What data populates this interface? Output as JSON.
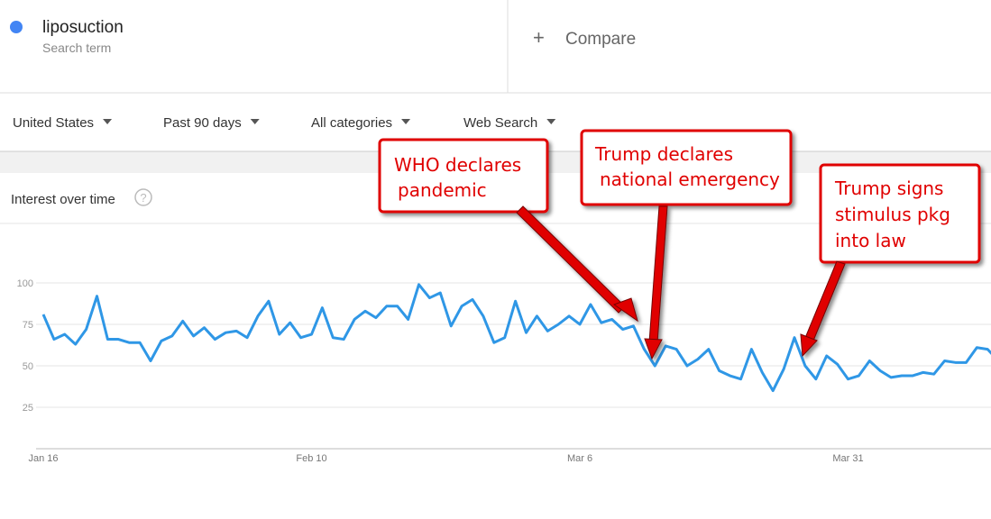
{
  "header": {
    "term": "liposuction",
    "term_type": "Search term",
    "compare": "Compare"
  },
  "filters": [
    "United States",
    "Past 90 days",
    "All categories",
    "Web Search"
  ],
  "card_title": "Interest over time",
  "chart_data": {
    "type": "line",
    "categories": [
      "Jan 16",
      null,
      null,
      null,
      null,
      null,
      null,
      null,
      null,
      null,
      null,
      null,
      null,
      null,
      null,
      null,
      null,
      null,
      null,
      null,
      null,
      null,
      null,
      null,
      null,
      "Feb 10",
      null,
      null,
      null,
      null,
      null,
      null,
      null,
      null,
      null,
      null,
      null,
      null,
      null,
      null,
      null,
      null,
      null,
      null,
      null,
      null,
      null,
      null,
      null,
      null,
      "Mar 6",
      null,
      null,
      null,
      null,
      null,
      null,
      null,
      null,
      null,
      null,
      null,
      null,
      null,
      null,
      null,
      null,
      null,
      null,
      null,
      null,
      null,
      null,
      null,
      null,
      "Mar 31",
      null,
      null,
      null,
      null,
      null,
      null,
      null,
      null,
      null,
      null,
      null,
      null,
      null,
      null
    ],
    "series": [
      {
        "name": "liposuction",
        "color": "#2f97e6",
        "values": [
          81,
          66,
          69,
          63,
          72,
          92,
          66,
          66,
          64,
          64,
          53,
          65,
          68,
          77,
          68,
          73,
          66,
          70,
          71,
          67,
          80,
          89,
          69,
          76,
          67,
          69,
          85,
          67,
          66,
          78,
          83,
          79,
          86,
          86,
          78,
          99,
          91,
          94,
          74,
          86,
          90,
          80,
          64,
          67,
          89,
          70,
          80,
          71,
          75,
          80,
          75,
          87,
          76,
          78,
          72,
          74,
          60,
          50,
          62,
          60,
          50,
          54,
          60,
          47,
          44,
          42,
          60,
          46,
          35,
          48,
          67,
          50,
          42,
          56,
          51,
          42,
          44,
          53,
          47,
          43,
          44,
          44,
          46,
          45,
          53,
          52,
          52,
          61,
          60,
          53
        ]
      }
    ],
    "ylim": [
      0,
      100
    ],
    "yticks": [
      25,
      50,
      75,
      100
    ],
    "grid": true,
    "annotations": [
      {
        "lines": [
          "WHO declares",
          "pandemic"
        ]
      },
      {
        "lines": [
          "Trump declares",
          "national emergency"
        ]
      },
      {
        "lines": [
          "Trump signs",
          "stimulus pkg",
          "into law"
        ]
      }
    ]
  }
}
